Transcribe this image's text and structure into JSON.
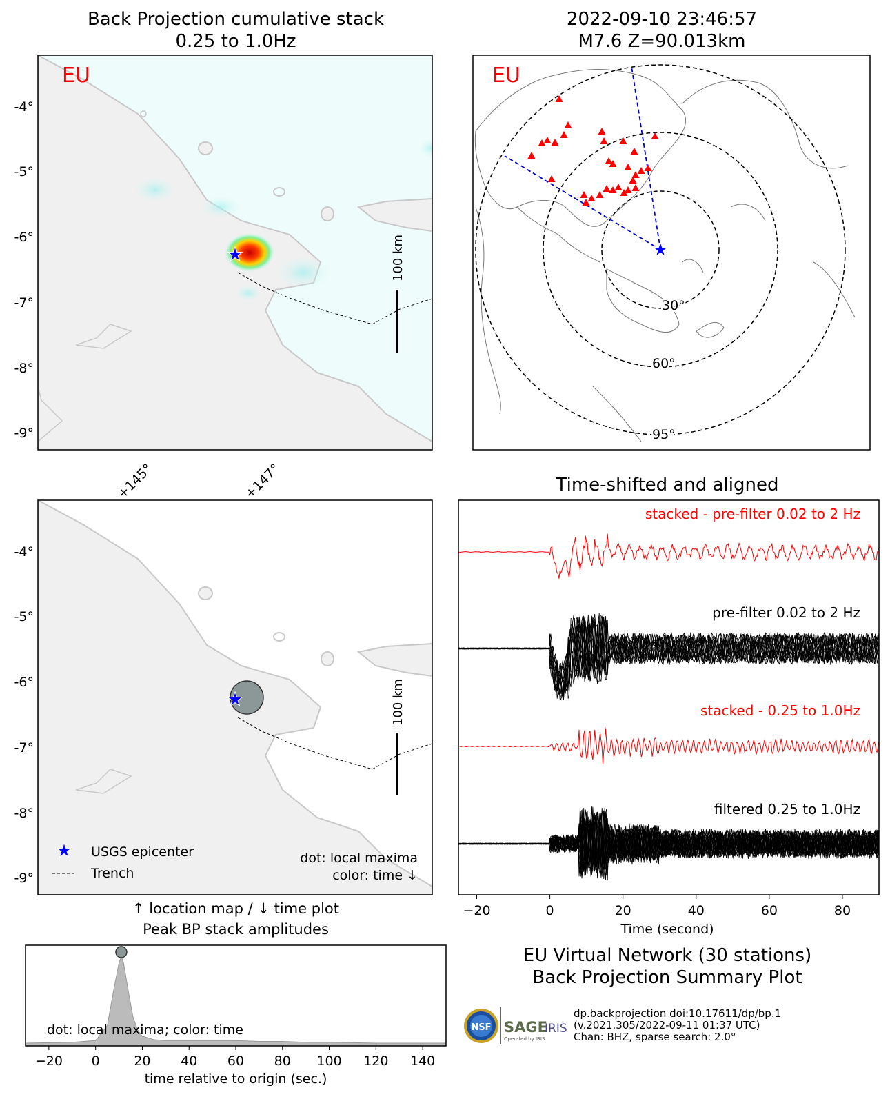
{
  "bp_map": {
    "title_line1": "Back Projection cumulative stack",
    "title_line2": "0.25 to 1.0Hz",
    "network_tag": "EU",
    "tag_color": "#ff0000",
    "lat_labels": [
      "-4°",
      "-5°",
      "-6°",
      "-7°",
      "-8°",
      "-9°"
    ],
    "lon_labels": [
      "+145°",
      "+147°"
    ],
    "scale_bar_label": "100 km"
  },
  "global_map": {
    "title_line1": "2022-09-10 23:46:57",
    "title_line2": "M7.6 Z=90.013km",
    "network_tag": "EU",
    "ring_labels": [
      "30°",
      "60°",
      "95°"
    ],
    "station_color": "#ff0000",
    "path_color": "#0000cc"
  },
  "location_map": {
    "lat_labels": [
      "-4°",
      "-5°",
      "-6°",
      "-7°",
      "-8°",
      "-9°"
    ],
    "scale_bar_label": "100 km",
    "legend": [
      {
        "icon": "star-icon",
        "label": "USGS epicenter"
      },
      {
        "icon": "dashed-line-icon",
        "label": "Trench"
      }
    ],
    "note_line1": "dot: local maxima",
    "note_line2": "color: time ↓",
    "caption_line1": "↑ location map / ↓ time plot",
    "caption_line2": "Peak BP stack amplitudes"
  },
  "traces": {
    "title": "Time-shifted and aligned",
    "labels": [
      {
        "text": "stacked - pre-filter 0.02 to 2 Hz",
        "color": "#ff0000"
      },
      {
        "text": "pre-filter 0.02 to 2 Hz",
        "color": "#000000"
      },
      {
        "text": "stacked - 0.25 to 1.0Hz",
        "color": "#ff0000"
      },
      {
        "text": "filtered 0.25 to 1.0Hz",
        "color": "#000000"
      }
    ],
    "xlabel": "Time (second)",
    "xticks": [
      "−20",
      "0",
      "20",
      "40",
      "60",
      "80"
    ]
  },
  "summary": {
    "line1": "EU Virtual Network (30 stations)",
    "line2": "Back Projection Summary Plot",
    "ref_line1": "dp.backprojection doi:10.17611/dp/bp.1",
    "ref_line2": "(v.2021.305/2022-09-11 01:37 UTC)",
    "ref_line3": "Chan: BHZ, sparse search: 2.0°",
    "nsf_text": "NSF",
    "sage_text": "SAGE",
    "iris_text": "IRIS",
    "operated_text": "Operated by IRIS"
  },
  "chart_data": [
    {
      "type": "area",
      "title": "",
      "xlabel": "time relative to origin (sec.)",
      "ylabel": "",
      "xlim": [
        -30,
        150
      ],
      "xticks": [
        "−20",
        "0",
        "20",
        "40",
        "60",
        "80",
        "100",
        "120",
        "140"
      ],
      "annotation": "dot: local maxima; color: time",
      "fill_color": "#bbbbbb",
      "x": [
        -30,
        -10,
        0,
        5,
        8,
        10,
        11,
        12,
        14,
        16,
        18,
        20,
        25,
        30,
        40,
        50,
        60,
        70,
        80,
        90,
        100,
        120,
        150
      ],
      "values": [
        0.0,
        0.01,
        0.03,
        0.2,
        0.65,
        0.92,
        1.0,
        0.92,
        0.6,
        0.3,
        0.15,
        0.08,
        0.04,
        0.03,
        0.03,
        0.03,
        0.03,
        0.02,
        0.02,
        0.01,
        0.01,
        0.0,
        0.0
      ],
      "peak": {
        "x": 11,
        "y": 1.0
      }
    }
  ]
}
